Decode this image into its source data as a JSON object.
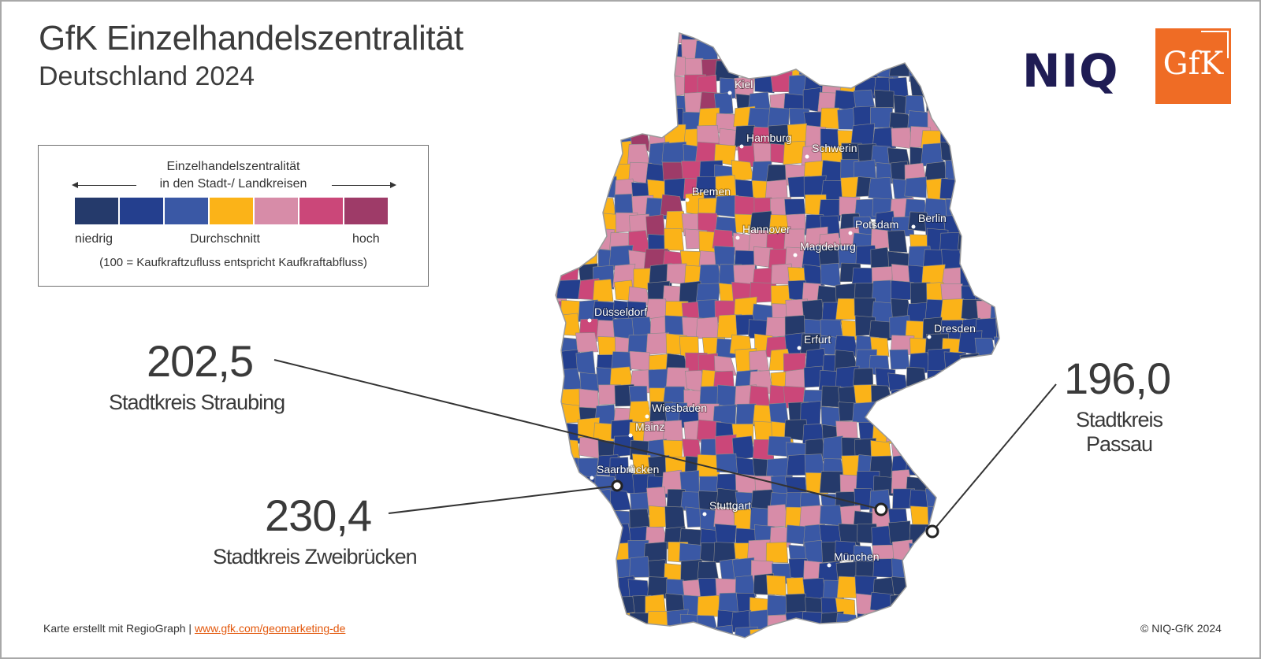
{
  "header": {
    "title": "GfK Einzelhandelszentralität",
    "subtitle": "Deutschland 2024"
  },
  "logos": {
    "niq": "NIQ",
    "gfk": "GfK"
  },
  "legend": {
    "title_line1": "Einzelhandelszentralität",
    "title_line2": "in den Stadt-/ Landkreisen",
    "low": "niedrig",
    "mid": "Durchschnitt",
    "high": "hoch",
    "note": "(100 = Kaufkraftzufluss entspricht Kaufkraftabfluss)",
    "colors": [
      "#253a6b",
      "#243f8e",
      "#3a58a5",
      "#fbb318",
      "#d78ca8",
      "#cb4779",
      "#9e3b68"
    ]
  },
  "cities": [
    "Kiel",
    "Hamburg",
    "Schwerin",
    "Bremen",
    "Berlin",
    "Potsdam",
    "Hannover",
    "Magdeburg",
    "Düsseldorf",
    "Dresden",
    "Erfurt",
    "Wiesbaden",
    "Mainz",
    "Saarbrücken",
    "Stuttgart",
    "München"
  ],
  "callouts": {
    "straubing": {
      "value": "202,5",
      "label": "Stadtkreis Straubing"
    },
    "passau": {
      "value": "196,0",
      "label_line1": "Stadtkreis",
      "label_line2": "Passau"
    },
    "zweibruecken": {
      "value": "230,4",
      "label": "Stadtkreis Zweibrücken"
    }
  },
  "footer": {
    "credit": "Karte erstellt mit RegioGraph |",
    "link": "www.gfk.com/geomarketing-de",
    "copyright": "© NIQ-GfK 2024"
  }
}
